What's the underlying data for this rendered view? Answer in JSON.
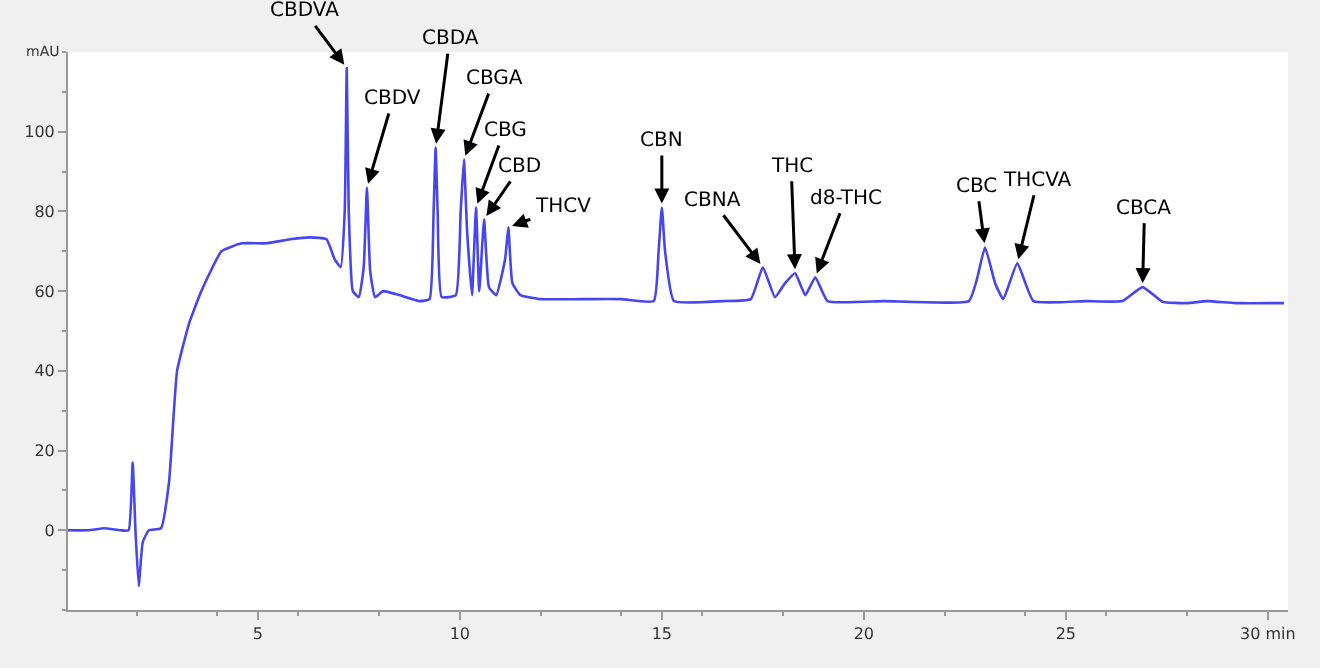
{
  "chart_data": {
    "type": "line",
    "ylabel": "mAU",
    "x": [
      0.3,
      0.8,
      1.2,
      1.6,
      1.8,
      1.9,
      1.97,
      2.05,
      2.15,
      2.3,
      2.6,
      2.8,
      3.0,
      3.3,
      3.6,
      4.1,
      4.6,
      5.2,
      5.8,
      6.3,
      6.7,
      6.9,
      7.05,
      7.15,
      7.2,
      7.25,
      7.35,
      7.5,
      7.62,
      7.7,
      7.78,
      7.9,
      8.1,
      8.5,
      9.0,
      9.25,
      9.35,
      9.4,
      9.45,
      9.55,
      9.9,
      10.02,
      10.1,
      10.18,
      10.3,
      10.4,
      10.48,
      10.6,
      10.72,
      10.9,
      11.12,
      11.2,
      11.3,
      11.5,
      12.0,
      13.0,
      14.0,
      14.8,
      14.92,
      15.0,
      15.08,
      15.3,
      16.5,
      17.2,
      17.5,
      17.8,
      18.05,
      18.3,
      18.55,
      18.8,
      19.1,
      20.5,
      22.6,
      22.8,
      23.0,
      23.25,
      23.45,
      23.8,
      24.2,
      25.5,
      26.4,
      26.9,
      27.4,
      28.0,
      28.5,
      29.2,
      30.4
    ],
    "series": [
      {
        "color": "#4646f0",
        "values": [
          0,
          0,
          0.5,
          0,
          0,
          17,
          0,
          -14,
          -3,
          0,
          0.5,
          12,
          40,
          52,
          60,
          70,
          72,
          72,
          73,
          73.5,
          73,
          68,
          66,
          80,
          116,
          80,
          60,
          58.5,
          66,
          86,
          65,
          58.5,
          60,
          59,
          57.5,
          58,
          80,
          96,
          80,
          58.5,
          59,
          80,
          93,
          75,
          59,
          81,
          60,
          78,
          61,
          59,
          68,
          76,
          62,
          59,
          58,
          58,
          58,
          57.5,
          70,
          81,
          70,
          57.5,
          57.5,
          58,
          66,
          58.5,
          62,
          64.5,
          59,
          63.5,
          57.5,
          57.5,
          57.5,
          63,
          71,
          62,
          58,
          67,
          57.5,
          57.5,
          57.5,
          61,
          57.3,
          57,
          57.5,
          57,
          57
        ]
      }
    ],
    "xlim": [
      0.3,
      30.5
    ],
    "ylim": [
      -20,
      120
    ],
    "xticks": [
      5,
      10,
      15,
      20,
      25,
      {
        "value": 30,
        "label": "30 min"
      }
    ],
    "yticks": [
      0,
      20,
      40,
      60,
      80,
      100
    ],
    "marker": "none",
    "line_style": "solid",
    "annotations": [
      {
        "text": "CBDVA",
        "x": 7.2,
        "y": 116
      },
      {
        "text": "CBDV",
        "x": 7.7,
        "y": 86
      },
      {
        "text": "CBDA",
        "x": 9.4,
        "y": 96
      },
      {
        "text": "CBGA",
        "x": 10.1,
        "y": 93
      },
      {
        "text": "CBG",
        "x": 10.4,
        "y": 81
      },
      {
        "text": "CBD",
        "x": 10.6,
        "y": 78
      },
      {
        "text": "THCV",
        "x": 11.2,
        "y": 76
      },
      {
        "text": "CBN",
        "x": 15.0,
        "y": 81
      },
      {
        "text": "CBNA",
        "x": 17.5,
        "y": 66
      },
      {
        "text": "THC",
        "x": 18.3,
        "y": 64.5
      },
      {
        "text": "d8-THC",
        "x": 18.8,
        "y": 63.5
      },
      {
        "text": "CBC",
        "x": 23.0,
        "y": 71
      },
      {
        "text": "THCVA",
        "x": 23.8,
        "y": 67
      },
      {
        "text": "CBCA",
        "x": 26.9,
        "y": 61
      }
    ]
  }
}
